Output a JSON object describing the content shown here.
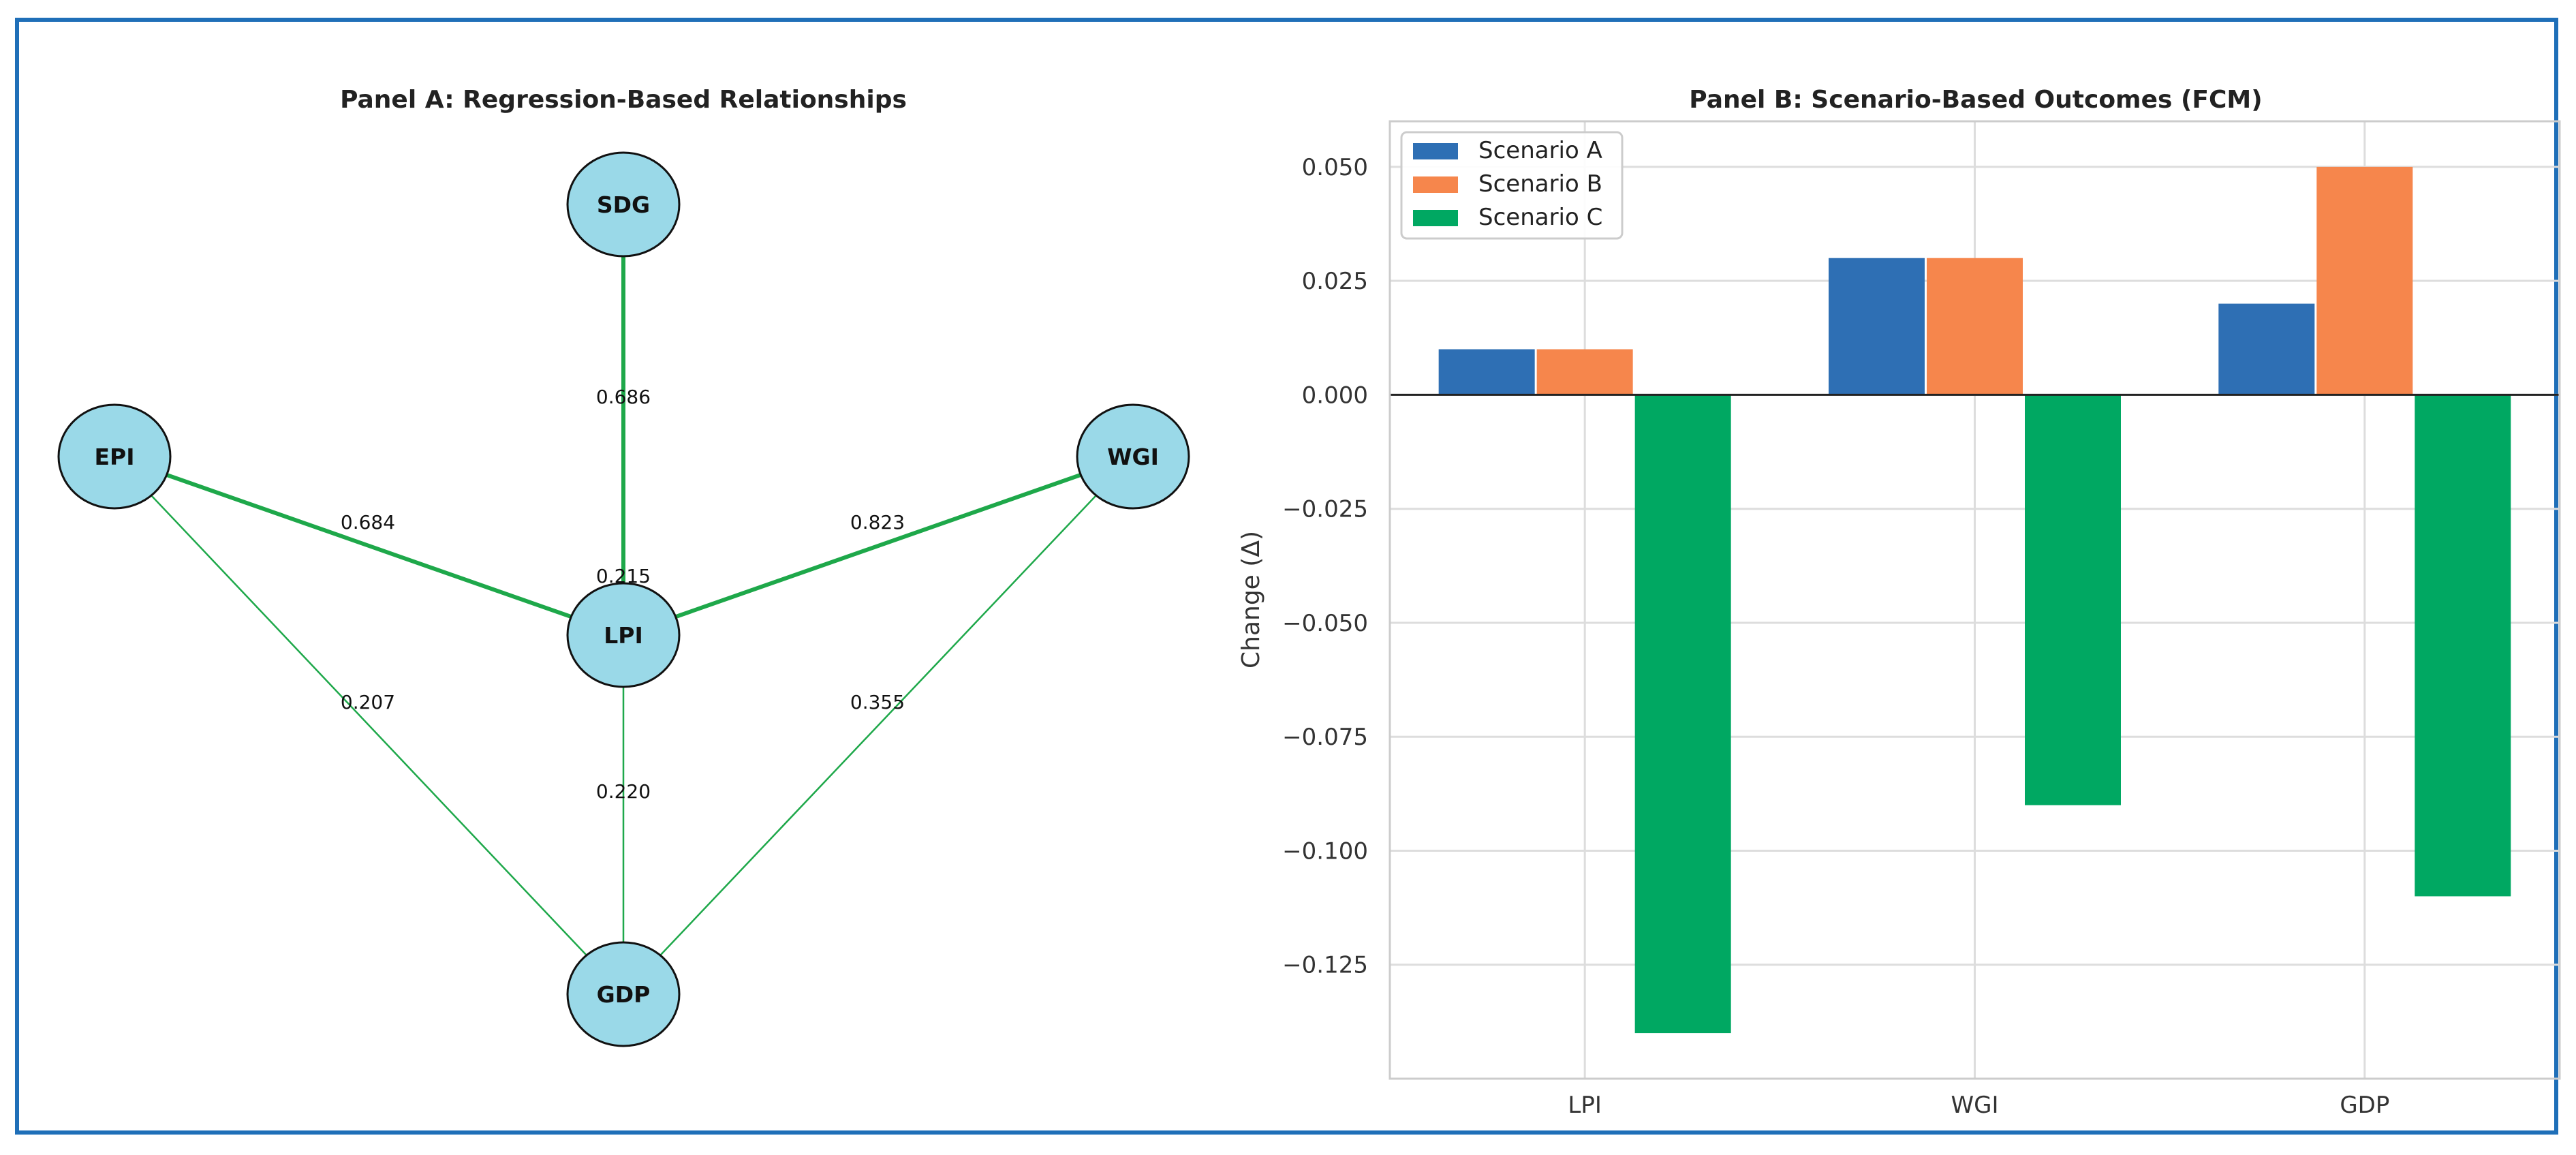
{
  "panel_a": {
    "title": "Panel A: Regression-Based Relationships",
    "edge_color": "#1ea84a",
    "node_fill": "#9ad9e8",
    "nodes": [
      {
        "id": "SDG",
        "label": "SDG"
      },
      {
        "id": "EPI",
        "label": "EPI"
      },
      {
        "id": "WGI",
        "label": "WGI"
      },
      {
        "id": "LPI",
        "label": "LPI"
      },
      {
        "id": "GDP",
        "label": "GDP"
      }
    ],
    "edges": [
      {
        "from": "SDG",
        "to": "LPI",
        "weight": 0.686,
        "label": "0.686"
      },
      {
        "from": "EPI",
        "to": "LPI",
        "weight": 0.684,
        "label": "0.684"
      },
      {
        "from": "WGI",
        "to": "LPI",
        "weight": 0.823,
        "label": "0.823"
      },
      {
        "from": "EPI",
        "to": "GDP",
        "weight": 0.207,
        "label": "0.207"
      },
      {
        "from": "WGI",
        "to": "GDP",
        "weight": 0.355,
        "label": "0.355"
      },
      {
        "from": "LPI",
        "to": "GDP",
        "weight": 0.22,
        "label": "0.220"
      },
      {
        "from": "LPI",
        "to": "SDG",
        "weight": 0.215,
        "label": "0.215"
      }
    ]
  },
  "chart_data": {
    "type": "bar",
    "title": "Panel B: Scenario-Based Outcomes (FCM)",
    "xlabel": "",
    "ylabel": "Change (Δ)",
    "categories": [
      "LPI",
      "WGI",
      "GDP"
    ],
    "series": [
      {
        "name": "Scenario A",
        "color": "#2e6fb4",
        "values": [
          0.01,
          0.03,
          0.02
        ]
      },
      {
        "name": "Scenario B",
        "color": "#f6864c",
        "values": [
          0.01,
          0.03,
          0.05
        ]
      },
      {
        "name": "Scenario C",
        "color": "#00a862",
        "values": [
          -0.14,
          -0.09,
          -0.11
        ]
      }
    ],
    "ylim": [
      -0.15,
      0.06
    ],
    "yticks": [
      0.05,
      0.025,
      0.0,
      -0.025,
      -0.05,
      -0.075,
      -0.1,
      -0.125
    ],
    "ytick_labels": [
      "0.050",
      "0.025",
      "0.000",
      "−0.025",
      "−0.050",
      "−0.075",
      "−0.100",
      "−0.125"
    ],
    "grid": true,
    "legend": "top-left"
  }
}
